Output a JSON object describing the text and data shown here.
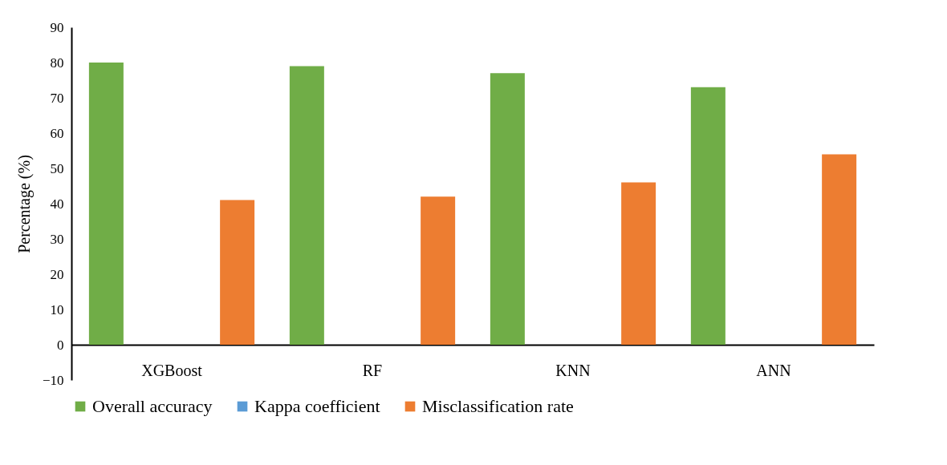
{
  "chart_data": {
    "type": "bar",
    "ylabel": "Percentage (%)",
    "categories": [
      "XGBoost",
      "RF",
      "KNN",
      "ANN"
    ],
    "series": [
      {
        "name": "Overall accuracy",
        "color": "#70ad47",
        "values": [
          80,
          79,
          77,
          73
        ]
      },
      {
        "name": "Kappa coefficient",
        "color": "#5b9bd5",
        "values": [
          null,
          null,
          null,
          null
        ]
      },
      {
        "name": "Misclassification rate",
        "color": "#ed7d31",
        "values": [
          41,
          42,
          46,
          54
        ]
      }
    ],
    "ylim": [
      -10,
      90
    ],
    "yticks": [
      -10,
      0,
      10,
      20,
      30,
      40,
      50,
      60,
      70,
      80,
      90
    ],
    "grid": false,
    "legend": "bottom"
  }
}
